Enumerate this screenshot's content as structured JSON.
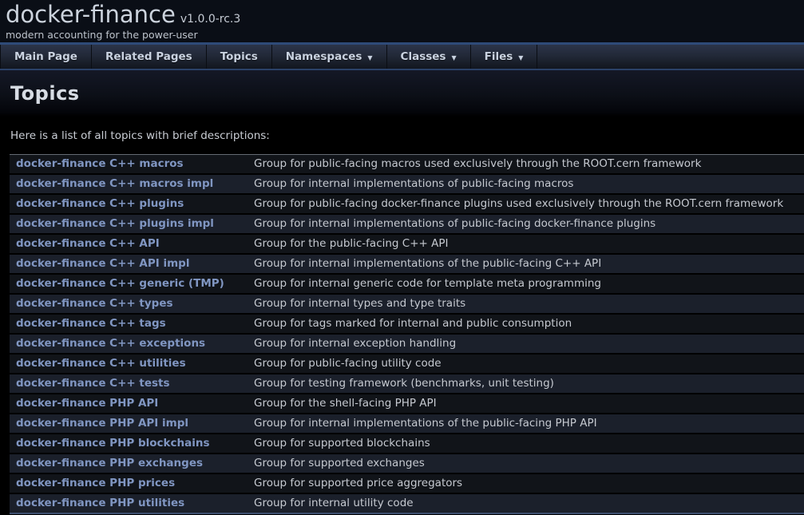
{
  "titlearea": {
    "project_name": "docker-finance",
    "project_version": "v1.0.0-rc.3",
    "project_brief": "modern accounting for the power-user"
  },
  "navbar": {
    "items": [
      {
        "label": "Main Page",
        "dropdown": false
      },
      {
        "label": "Related Pages",
        "dropdown": false
      },
      {
        "label": "Topics",
        "dropdown": false
      },
      {
        "label": "Namespaces",
        "dropdown": true
      },
      {
        "label": "Classes",
        "dropdown": true
      },
      {
        "label": "Files",
        "dropdown": true
      }
    ],
    "dropdown_icon": "▼"
  },
  "page": {
    "title": "Topics",
    "intro": "Here is a list of all topics with brief descriptions:"
  },
  "topics": [
    {
      "name": "docker-finance C++ macros",
      "description": "Group for public-facing macros used exclusively through the ROOT.cern framework"
    },
    {
      "name": "docker-finance C++ macros impl",
      "description": "Group for internal implementations of public-facing macros"
    },
    {
      "name": "docker-finance C++ plugins",
      "description": "Group for public-facing docker-finance plugins used exclusively through the ROOT.cern framework"
    },
    {
      "name": "docker-finance C++ plugins impl",
      "description": "Group for internal implementations of public-facing docker-finance plugins"
    },
    {
      "name": "docker-finance C++ API",
      "description": "Group for the public-facing C++ API"
    },
    {
      "name": "docker-finance C++ API impl",
      "description": "Group for internal implementations of the public-facing C++ API"
    },
    {
      "name": "docker-finance C++ generic (TMP)",
      "description": "Group for internal generic code for template meta programming"
    },
    {
      "name": "docker-finance C++ types",
      "description": "Group for internal types and type traits"
    },
    {
      "name": "docker-finance C++ tags",
      "description": "Group for tags marked for internal and public consumption"
    },
    {
      "name": "docker-finance C++ exceptions",
      "description": "Group for internal exception handling"
    },
    {
      "name": "docker-finance C++ utilities",
      "description": "Group for public-facing utility code"
    },
    {
      "name": "docker-finance C++ tests",
      "description": "Group for testing framework (benchmarks, unit testing)"
    },
    {
      "name": "docker-finance PHP API",
      "description": "Group for the shell-facing PHP API"
    },
    {
      "name": "docker-finance PHP API impl",
      "description": "Group for internal implementations of the public-facing PHP API"
    },
    {
      "name": "docker-finance PHP blockchains",
      "description": "Group for supported blockchains"
    },
    {
      "name": "docker-finance PHP exchanges",
      "description": "Group for supported exchanges"
    },
    {
      "name": "docker-finance PHP prices",
      "description": "Group for supported price aggregators"
    },
    {
      "name": "docker-finance PHP utilities",
      "description": "Group for internal utility code"
    }
  ],
  "colors": {
    "page_background": "#000000",
    "header_background": "#0a0e16",
    "nav_accent_line": "#2e4a78",
    "link": "#8096c2",
    "row_odd": "#111419",
    "row_even": "#1b202b",
    "body_text": "#c5c9d0"
  }
}
